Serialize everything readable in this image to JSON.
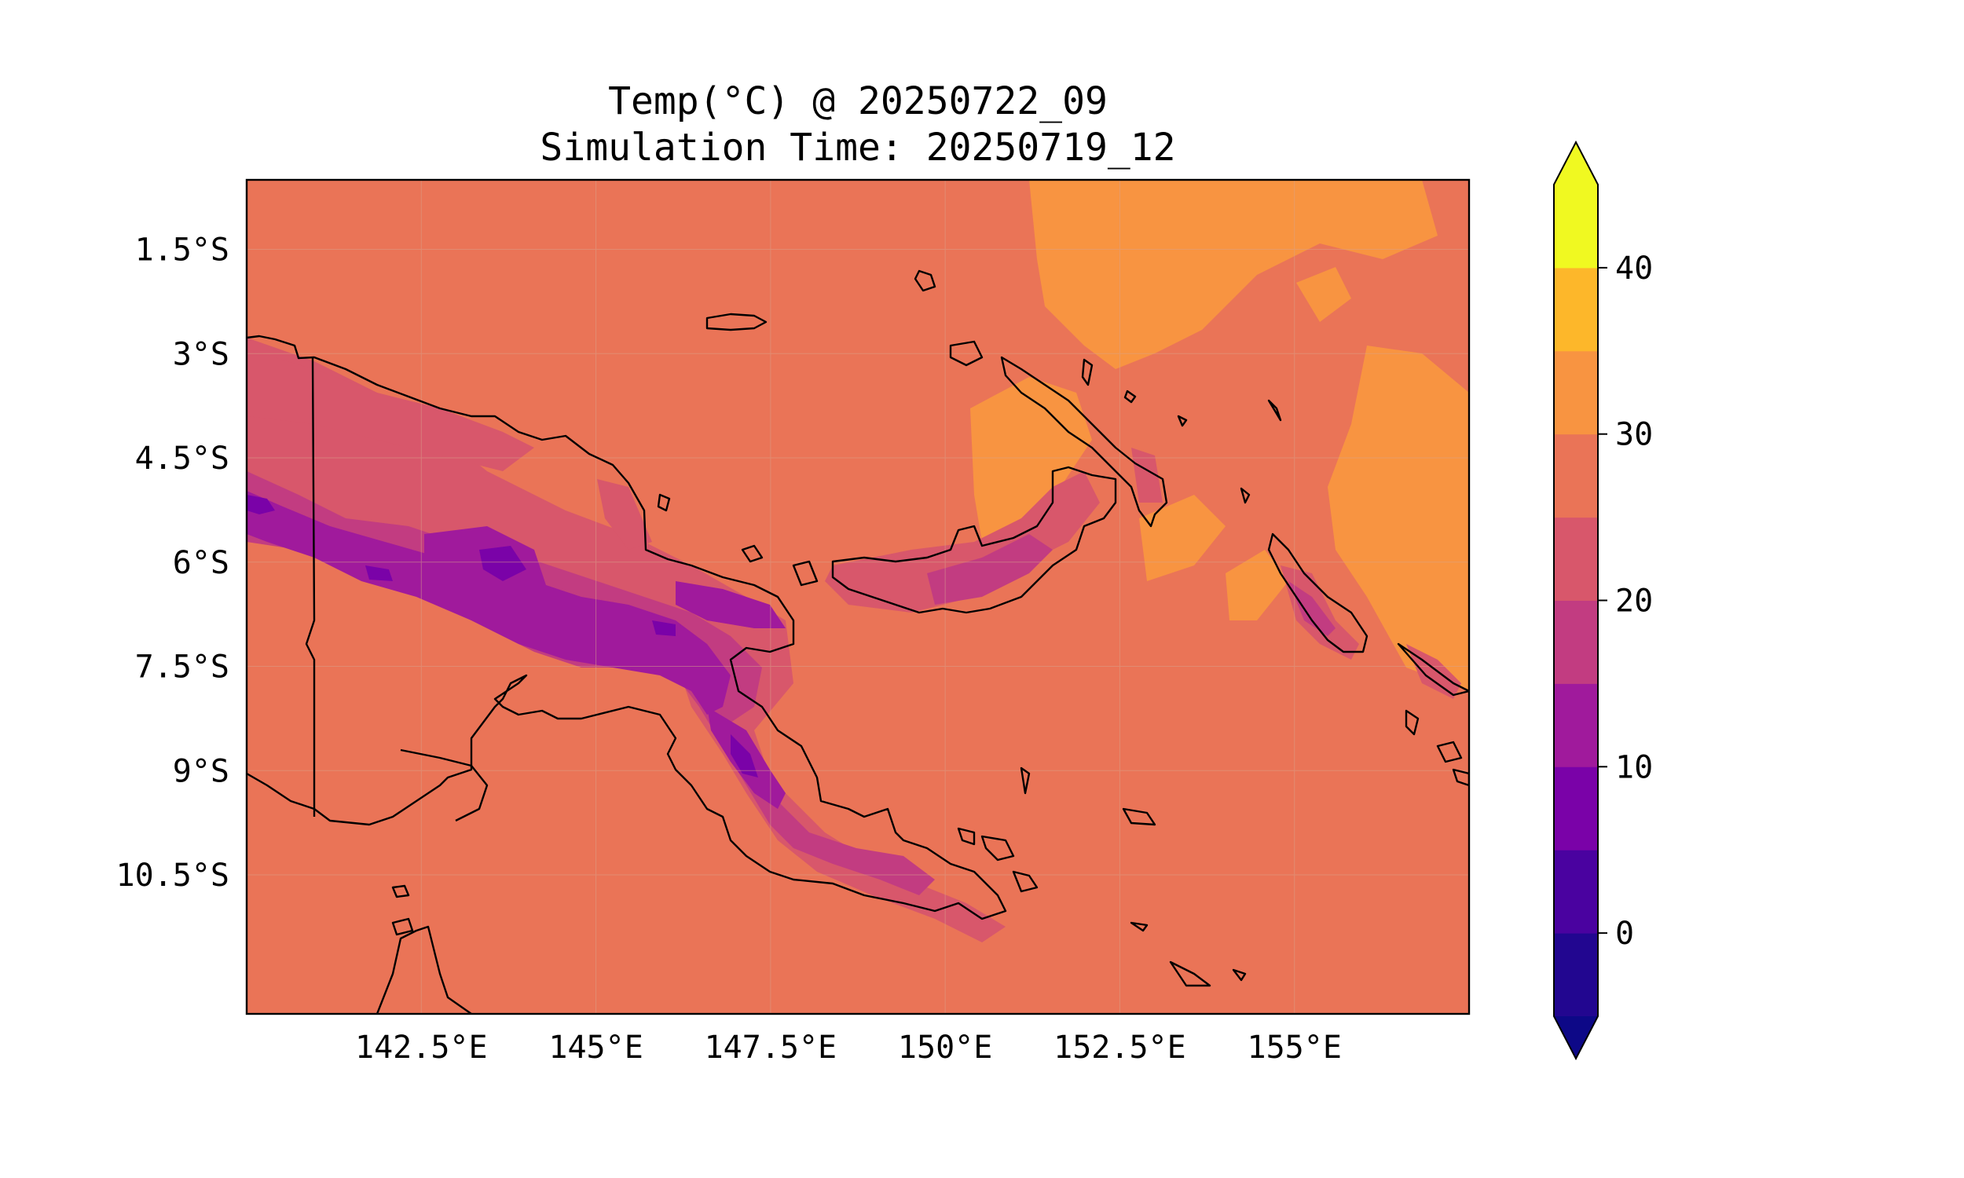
{
  "title": {
    "line1": "Temp(°C) @ 20250722_09",
    "line2": "Simulation Time: 20250719_12"
  },
  "map": {
    "region": "Papua New Guinea",
    "lon_range": [
      140,
      157.5
    ],
    "lat_range": [
      -12.5,
      -0.5
    ],
    "background_value_range": "25-30",
    "gridlines": true
  },
  "axes": {
    "x_ticks": [
      {
        "value": 142.5,
        "label": "142.5°E"
      },
      {
        "value": 145,
        "label": "145°E"
      },
      {
        "value": 147.5,
        "label": "147.5°E"
      },
      {
        "value": 150,
        "label": "150°E"
      },
      {
        "value": 152.5,
        "label": "152.5°E"
      },
      {
        "value": 155,
        "label": "155°E"
      }
    ],
    "y_ticks": [
      {
        "value": -1.5,
        "label": "1.5°S"
      },
      {
        "value": -3,
        "label": "3°S"
      },
      {
        "value": -4.5,
        "label": "4.5°S"
      },
      {
        "value": -6,
        "label": "6°S"
      },
      {
        "value": -7.5,
        "label": "7.5°S"
      },
      {
        "value": -9,
        "label": "9°S"
      },
      {
        "value": -10.5,
        "label": "10.5°S"
      }
    ]
  },
  "colorbar": {
    "levels": [
      -5,
      0,
      5,
      10,
      15,
      20,
      25,
      30,
      35,
      40,
      45
    ],
    "colors": [
      "#220690",
      "#4a02a0",
      "#7a02a8",
      "#a01a9c",
      "#c23c81",
      "#d8576b",
      "#ea7457",
      "#f89441",
      "#fdb72a",
      "#f0f921"
    ],
    "under_color": "#0d0887",
    "over_color": "#f0f921",
    "tick_labels": [
      {
        "value": 0,
        "label": "0"
      },
      {
        "value": 10,
        "label": "10"
      },
      {
        "value": 20,
        "label": "20"
      },
      {
        "value": 30,
        "label": "30"
      },
      {
        "value": 40,
        "label": "40"
      }
    ],
    "extend": "both"
  }
}
